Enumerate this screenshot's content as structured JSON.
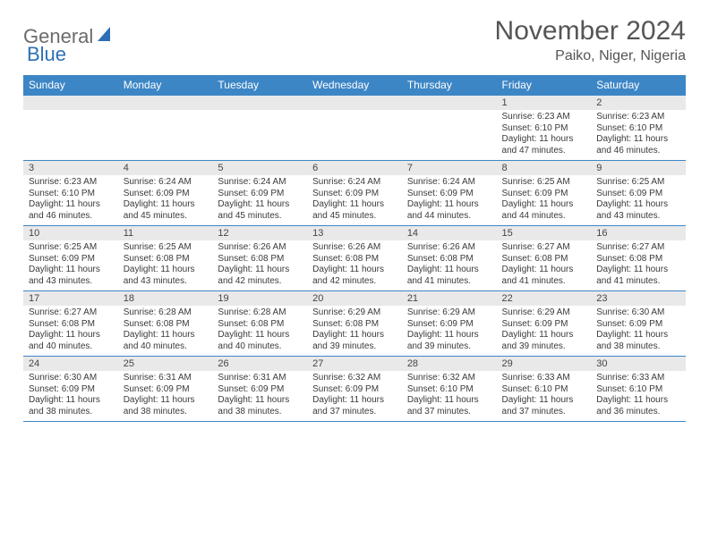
{
  "logo": {
    "part1": "General",
    "part2": "Blue"
  },
  "title": "November 2024",
  "location": "Paiko, Niger, Nigeria",
  "colors": {
    "header_bg": "#3d86c6",
    "header_text": "#ffffff",
    "daynum_bg": "#e9e9e9",
    "border": "#3d86c6",
    "logo_gray": "#6b6b6b",
    "logo_blue": "#2d6fb5"
  },
  "dayHeaders": [
    "Sunday",
    "Monday",
    "Tuesday",
    "Wednesday",
    "Thursday",
    "Friday",
    "Saturday"
  ],
  "weeks": [
    [
      {
        "n": "",
        "lines": []
      },
      {
        "n": "",
        "lines": []
      },
      {
        "n": "",
        "lines": []
      },
      {
        "n": "",
        "lines": []
      },
      {
        "n": "",
        "lines": []
      },
      {
        "n": "1",
        "lines": [
          "Sunrise: 6:23 AM",
          "Sunset: 6:10 PM",
          "Daylight: 11 hours and 47 minutes."
        ]
      },
      {
        "n": "2",
        "lines": [
          "Sunrise: 6:23 AM",
          "Sunset: 6:10 PM",
          "Daylight: 11 hours and 46 minutes."
        ]
      }
    ],
    [
      {
        "n": "3",
        "lines": [
          "Sunrise: 6:23 AM",
          "Sunset: 6:10 PM",
          "Daylight: 11 hours and 46 minutes."
        ]
      },
      {
        "n": "4",
        "lines": [
          "Sunrise: 6:24 AM",
          "Sunset: 6:09 PM",
          "Daylight: 11 hours and 45 minutes."
        ]
      },
      {
        "n": "5",
        "lines": [
          "Sunrise: 6:24 AM",
          "Sunset: 6:09 PM",
          "Daylight: 11 hours and 45 minutes."
        ]
      },
      {
        "n": "6",
        "lines": [
          "Sunrise: 6:24 AM",
          "Sunset: 6:09 PM",
          "Daylight: 11 hours and 45 minutes."
        ]
      },
      {
        "n": "7",
        "lines": [
          "Sunrise: 6:24 AM",
          "Sunset: 6:09 PM",
          "Daylight: 11 hours and 44 minutes."
        ]
      },
      {
        "n": "8",
        "lines": [
          "Sunrise: 6:25 AM",
          "Sunset: 6:09 PM",
          "Daylight: 11 hours and 44 minutes."
        ]
      },
      {
        "n": "9",
        "lines": [
          "Sunrise: 6:25 AM",
          "Sunset: 6:09 PM",
          "Daylight: 11 hours and 43 minutes."
        ]
      }
    ],
    [
      {
        "n": "10",
        "lines": [
          "Sunrise: 6:25 AM",
          "Sunset: 6:09 PM",
          "Daylight: 11 hours and 43 minutes."
        ]
      },
      {
        "n": "11",
        "lines": [
          "Sunrise: 6:25 AM",
          "Sunset: 6:08 PM",
          "Daylight: 11 hours and 43 minutes."
        ]
      },
      {
        "n": "12",
        "lines": [
          "Sunrise: 6:26 AM",
          "Sunset: 6:08 PM",
          "Daylight: 11 hours and 42 minutes."
        ]
      },
      {
        "n": "13",
        "lines": [
          "Sunrise: 6:26 AM",
          "Sunset: 6:08 PM",
          "Daylight: 11 hours and 42 minutes."
        ]
      },
      {
        "n": "14",
        "lines": [
          "Sunrise: 6:26 AM",
          "Sunset: 6:08 PM",
          "Daylight: 11 hours and 41 minutes."
        ]
      },
      {
        "n": "15",
        "lines": [
          "Sunrise: 6:27 AM",
          "Sunset: 6:08 PM",
          "Daylight: 11 hours and 41 minutes."
        ]
      },
      {
        "n": "16",
        "lines": [
          "Sunrise: 6:27 AM",
          "Sunset: 6:08 PM",
          "Daylight: 11 hours and 41 minutes."
        ]
      }
    ],
    [
      {
        "n": "17",
        "lines": [
          "Sunrise: 6:27 AM",
          "Sunset: 6:08 PM",
          "Daylight: 11 hours and 40 minutes."
        ]
      },
      {
        "n": "18",
        "lines": [
          "Sunrise: 6:28 AM",
          "Sunset: 6:08 PM",
          "Daylight: 11 hours and 40 minutes."
        ]
      },
      {
        "n": "19",
        "lines": [
          "Sunrise: 6:28 AM",
          "Sunset: 6:08 PM",
          "Daylight: 11 hours and 40 minutes."
        ]
      },
      {
        "n": "20",
        "lines": [
          "Sunrise: 6:29 AM",
          "Sunset: 6:08 PM",
          "Daylight: 11 hours and 39 minutes."
        ]
      },
      {
        "n": "21",
        "lines": [
          "Sunrise: 6:29 AM",
          "Sunset: 6:09 PM",
          "Daylight: 11 hours and 39 minutes."
        ]
      },
      {
        "n": "22",
        "lines": [
          "Sunrise: 6:29 AM",
          "Sunset: 6:09 PM",
          "Daylight: 11 hours and 39 minutes."
        ]
      },
      {
        "n": "23",
        "lines": [
          "Sunrise: 6:30 AM",
          "Sunset: 6:09 PM",
          "Daylight: 11 hours and 38 minutes."
        ]
      }
    ],
    [
      {
        "n": "24",
        "lines": [
          "Sunrise: 6:30 AM",
          "Sunset: 6:09 PM",
          "Daylight: 11 hours and 38 minutes."
        ]
      },
      {
        "n": "25",
        "lines": [
          "Sunrise: 6:31 AM",
          "Sunset: 6:09 PM",
          "Daylight: 11 hours and 38 minutes."
        ]
      },
      {
        "n": "26",
        "lines": [
          "Sunrise: 6:31 AM",
          "Sunset: 6:09 PM",
          "Daylight: 11 hours and 38 minutes."
        ]
      },
      {
        "n": "27",
        "lines": [
          "Sunrise: 6:32 AM",
          "Sunset: 6:09 PM",
          "Daylight: 11 hours and 37 minutes."
        ]
      },
      {
        "n": "28",
        "lines": [
          "Sunrise: 6:32 AM",
          "Sunset: 6:10 PM",
          "Daylight: 11 hours and 37 minutes."
        ]
      },
      {
        "n": "29",
        "lines": [
          "Sunrise: 6:33 AM",
          "Sunset: 6:10 PM",
          "Daylight: 11 hours and 37 minutes."
        ]
      },
      {
        "n": "30",
        "lines": [
          "Sunrise: 6:33 AM",
          "Sunset: 6:10 PM",
          "Daylight: 11 hours and 36 minutes."
        ]
      }
    ]
  ]
}
